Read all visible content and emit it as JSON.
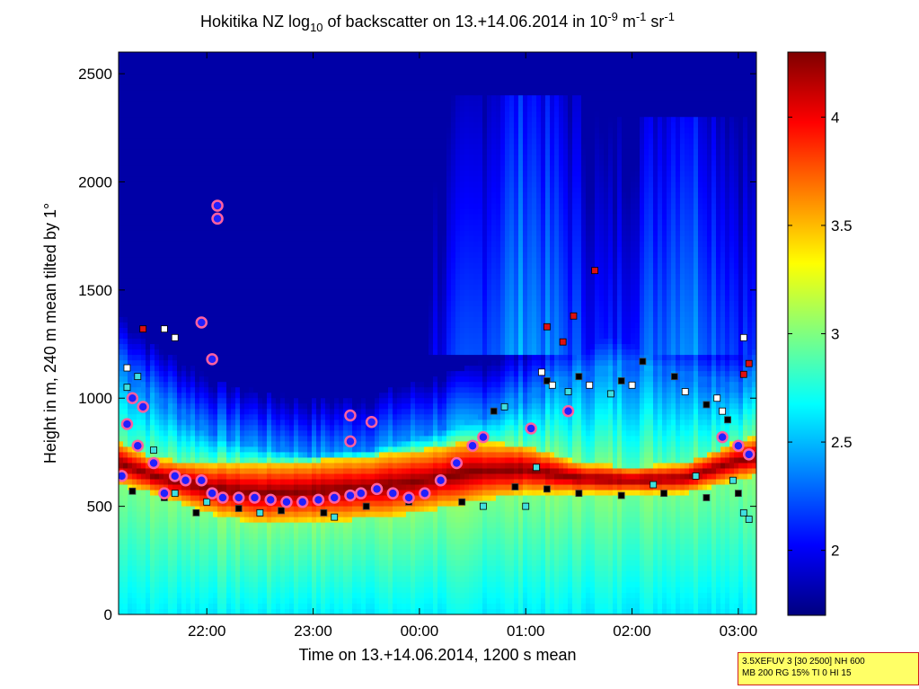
{
  "chart_data": {
    "type": "heatmap",
    "title": {
      "main": "Hokitika NZ log",
      "sub": "10",
      "mid": " of backscatter on 13.+14.06.2014 in 10",
      "exp1": "-9",
      "unit": " m",
      "exp2": "-1",
      "sr": " sr",
      "exp3": "-1"
    },
    "xlabel": "Time on 13.+14.06.2014, 1200 s mean",
    "ylabel": "Height in m, 240 m mean tilted by 1°",
    "x_tick_labels": [
      "22:00",
      "23:00",
      "00:00",
      "01:00",
      "02:00",
      "03:00"
    ],
    "x_tick_hours": [
      22,
      23,
      24,
      25,
      26,
      27
    ],
    "x_range_hours": [
      21.17,
      27.17
    ],
    "y_ticks": [
      0,
      500,
      1000,
      1500,
      2000,
      2500
    ],
    "y_range": [
      0,
      2600
    ],
    "colorbar": {
      "ticks": [
        2,
        2.5,
        3,
        3.5,
        4
      ],
      "labels": [
        "2",
        "2.5",
        "3",
        "3.5",
        "4"
      ],
      "range": [
        1.7,
        4.3
      ],
      "colormap": "jet"
    },
    "field": {
      "background_value": 1.8,
      "boundary_layer_top_m": [
        [
          21.17,
          1150
        ],
        [
          21.5,
          1000
        ],
        [
          22.0,
          850
        ],
        [
          22.5,
          780
        ],
        [
          23.0,
          740
        ],
        [
          23.5,
          760
        ],
        [
          24.0,
          830
        ],
        [
          24.5,
          900
        ],
        [
          25.0,
          1000
        ],
        [
          25.5,
          1100
        ],
        [
          26.0,
          1150
        ],
        [
          26.5,
          1100
        ],
        [
          27.0,
          1050
        ],
        [
          27.17,
          1100
        ]
      ],
      "aerosol_layer_m": [
        [
          21.17,
          600,
          800
        ],
        [
          21.5,
          560,
          720
        ],
        [
          22.0,
          470,
          700
        ],
        [
          22.5,
          420,
          700
        ],
        [
          23.0,
          430,
          710
        ],
        [
          23.5,
          440,
          730
        ],
        [
          24.0,
          470,
          760
        ],
        [
          24.5,
          520,
          800
        ],
        [
          25.0,
          560,
          780
        ],
        [
          25.5,
          560,
          700
        ],
        [
          26.0,
          560,
          680
        ],
        [
          26.5,
          560,
          700
        ],
        [
          27.0,
          620,
          800
        ],
        [
          27.17,
          640,
          820
        ]
      ],
      "upper_cloud_plume": [
        [
          25.0,
          1200,
          2400
        ],
        [
          26.5,
          1200,
          2300
        ]
      ]
    },
    "markers": {
      "cloud_base_circles_m": [
        [
          21.2,
          640
        ],
        [
          21.25,
          880
        ],
        [
          21.3,
          1000
        ],
        [
          21.35,
          780
        ],
        [
          21.4,
          960
        ],
        [
          21.5,
          700
        ],
        [
          21.6,
          560
        ],
        [
          21.7,
          640
        ],
        [
          21.8,
          620
        ],
        [
          21.95,
          620
        ],
        [
          22.05,
          560
        ],
        [
          22.15,
          540
        ],
        [
          22.3,
          540
        ],
        [
          22.45,
          540
        ],
        [
          22.6,
          530
        ],
        [
          22.75,
          520
        ],
        [
          22.9,
          520
        ],
        [
          23.05,
          530
        ],
        [
          23.2,
          540
        ],
        [
          23.35,
          550
        ],
        [
          23.45,
          560
        ],
        [
          23.6,
          580
        ],
        [
          23.75,
          560
        ],
        [
          23.9,
          540
        ],
        [
          24.05,
          560
        ],
        [
          24.2,
          620
        ],
        [
          24.35,
          700
        ],
        [
          24.5,
          780
        ],
        [
          24.6,
          820
        ],
        [
          21.95,
          1350
        ],
        [
          22.05,
          1180
        ],
        [
          22.1,
          1830
        ],
        [
          22.1,
          1890
        ],
        [
          23.35,
          920
        ],
        [
          23.55,
          890
        ],
        [
          23.35,
          800
        ],
        [
          25.05,
          860
        ],
        [
          25.4,
          940
        ],
        [
          26.85,
          820
        ],
        [
          27.0,
          780
        ],
        [
          27.1,
          740
        ]
      ],
      "black_squares_m": [
        [
          21.3,
          570
        ],
        [
          21.6,
          540
        ],
        [
          21.9,
          470
        ],
        [
          22.3,
          490
        ],
        [
          22.7,
          480
        ],
        [
          23.1,
          470
        ],
        [
          23.5,
          500
        ],
        [
          23.9,
          520
        ],
        [
          24.4,
          520
        ],
        [
          24.7,
          940
        ],
        [
          24.9,
          590
        ],
        [
          25.2,
          580
        ],
        [
          25.5,
          560
        ],
        [
          25.9,
          550
        ],
        [
          26.3,
          560
        ],
        [
          26.7,
          540
        ],
        [
          27.0,
          560
        ],
        [
          25.2,
          1080
        ],
        [
          25.5,
          1100
        ],
        [
          25.9,
          1080
        ],
        [
          26.1,
          1170
        ],
        [
          26.4,
          1100
        ],
        [
          26.7,
          970
        ],
        [
          26.9,
          900
        ]
      ],
      "cyan_squares_m": [
        [
          21.25,
          1050
        ],
        [
          21.35,
          1100
        ],
        [
          21.5,
          760
        ],
        [
          21.7,
          560
        ],
        [
          22.0,
          520
        ],
        [
          22.5,
          470
        ],
        [
          23.2,
          450
        ],
        [
          24.6,
          500
        ],
        [
          25.0,
          500
        ],
        [
          25.4,
          1030
        ],
        [
          25.8,
          1020
        ],
        [
          26.2,
          600
        ],
        [
          26.6,
          640
        ],
        [
          26.95,
          620
        ],
        [
          27.05,
          470
        ],
        [
          27.1,
          440
        ],
        [
          24.8,
          960
        ],
        [
          25.1,
          680
        ]
      ],
      "white_squares_m": [
        [
          21.25,
          1140
        ],
        [
          21.6,
          1320
        ],
        [
          21.7,
          1280
        ],
        [
          25.15,
          1120
        ],
        [
          25.25,
          1060
        ],
        [
          25.6,
          1060
        ],
        [
          26.0,
          1060
        ],
        [
          26.5,
          1030
        ],
        [
          26.8,
          1000
        ],
        [
          27.05,
          1280
        ],
        [
          26.85,
          940
        ]
      ],
      "red_squares_m": [
        [
          21.4,
          1320
        ],
        [
          25.2,
          1330
        ],
        [
          25.35,
          1260
        ],
        [
          25.45,
          1380
        ],
        [
          25.65,
          1590
        ],
        [
          27.1,
          1160
        ],
        [
          27.05,
          1110
        ]
      ]
    }
  },
  "info_box": {
    "line1": "3.5XEFUV 3 [30 2500] NH 600",
    "line2": "MB 200 RG 15% TI 0 HI 15"
  }
}
